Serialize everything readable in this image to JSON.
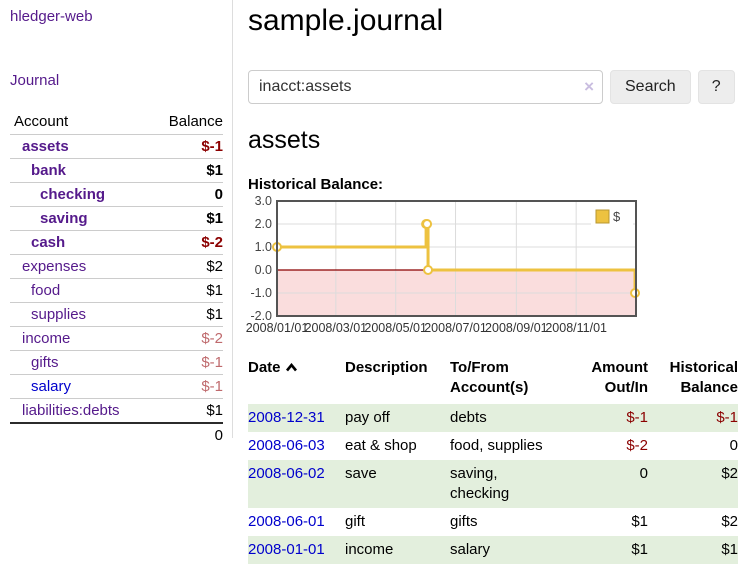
{
  "app": {
    "title": "hledger-web",
    "nav_journal": "Journal"
  },
  "sidebar": {
    "header": {
      "account": "Account",
      "balance": "Balance"
    },
    "accounts": [
      {
        "label": "assets",
        "level": 0,
        "bold": true,
        "balance": "$-1",
        "bclass": "neg",
        "lcolor": "purple"
      },
      {
        "label": "bank",
        "level": 1,
        "bold": true,
        "balance": "$1",
        "bclass": "pos",
        "lcolor": "purple"
      },
      {
        "label": "checking",
        "level": 2,
        "bold": true,
        "balance": "0",
        "bclass": "pos",
        "lcolor": "purple"
      },
      {
        "label": "saving",
        "level": 2,
        "bold": true,
        "balance": "$1",
        "bclass": "pos",
        "lcolor": "purple"
      },
      {
        "label": "cash",
        "level": 1,
        "bold": true,
        "balance": "$-2",
        "bclass": "neg",
        "lcolor": "purple"
      },
      {
        "label": "expenses",
        "level": 0,
        "bold": false,
        "balance": "$2",
        "bclass": "pos",
        "lcolor": "purple"
      },
      {
        "label": "food",
        "level": 1,
        "bold": false,
        "balance": "$1",
        "bclass": "pos",
        "lcolor": "purple"
      },
      {
        "label": "supplies",
        "level": 1,
        "bold": false,
        "balance": "$1",
        "bclass": "pos",
        "lcolor": "purple"
      },
      {
        "label": "income",
        "level": 0,
        "bold": false,
        "balance": "$-2",
        "bclass": "negl",
        "lcolor": "purple"
      },
      {
        "label": "gifts",
        "level": 1,
        "bold": false,
        "balance": "$-1",
        "bclass": "negl",
        "lcolor": "purple"
      },
      {
        "label": "salary",
        "level": 1,
        "bold": false,
        "balance": "$-1",
        "bclass": "negl",
        "lcolor": "blue"
      },
      {
        "label": "liabilities:debts",
        "level": 0,
        "bold": false,
        "balance": "$1",
        "bclass": "pos",
        "lcolor": "purple"
      }
    ],
    "total": "0"
  },
  "main": {
    "title": "sample.journal",
    "search": {
      "value": "inacct:assets",
      "clear_icon": "×",
      "button_label": "Search",
      "help_label": "?"
    },
    "account_heading": "assets",
    "chart_label": "Historical Balance:"
  },
  "chart_data": {
    "type": "line",
    "title": "Historical Balance",
    "step": true,
    "series": [
      {
        "name": "$",
        "color": "#edc240",
        "points": [
          [
            "2008-01-01",
            1
          ],
          [
            "2008-06-01",
            2
          ],
          [
            "2008-06-02",
            2
          ],
          [
            "2008-06-03",
            0
          ],
          [
            "2008-12-31",
            -1
          ]
        ]
      }
    ],
    "x_range": [
      "2008-01-01",
      "2009-01-01"
    ],
    "x_ticks": [
      {
        "date": "2008-01-01",
        "label": "2008/01/01"
      },
      {
        "date": "2008-03-01",
        "label": "2008/03/01"
      },
      {
        "date": "2008-05-01",
        "label": "2008/05/01"
      },
      {
        "date": "2008-07-01",
        "label": "2008/07/01"
      },
      {
        "date": "2008-09-01",
        "label": "2008/09/01"
      },
      {
        "date": "2008-11-01",
        "label": "2008/11/01"
      }
    ],
    "y_ticks": [
      3.0,
      2.0,
      1.0,
      0.0,
      -1.0,
      -2.0
    ],
    "ylim": [
      -2,
      3
    ],
    "grid": true,
    "legend": {
      "label": "$",
      "position": "top-right"
    },
    "negative_region_color": "#fadddd",
    "zero_line_color": "#8b0000",
    "border_color": "#545454"
  },
  "table": {
    "headers": [
      "Date",
      "Description",
      "To/From Account(s)",
      "Amount Out/In",
      "Historical Balance"
    ],
    "sort": "date-ascending",
    "rows": [
      {
        "date": "2008-12-31",
        "description": "pay off",
        "accounts": "debts",
        "amount": "$-1",
        "amount_neg": true,
        "balance": "$-1",
        "balance_neg": true,
        "shaded": true
      },
      {
        "date": "2008-06-03",
        "description": "eat & shop",
        "accounts": "food, supplies",
        "amount": "$-2",
        "amount_neg": true,
        "balance": "0",
        "balance_neg": false,
        "shaded": false
      },
      {
        "date": "2008-06-02",
        "description": "save",
        "accounts": "saving,\nchecking",
        "amount": "0",
        "amount_neg": false,
        "balance": "$2",
        "balance_neg": false,
        "shaded": true
      },
      {
        "date": "2008-06-01",
        "description": "gift",
        "accounts": "gifts",
        "amount": "$1",
        "amount_neg": false,
        "balance": "$2",
        "balance_neg": false,
        "shaded": false
      },
      {
        "date": "2008-01-01",
        "description": "income",
        "accounts": "salary",
        "amount": "$1",
        "amount_neg": false,
        "balance": "$1",
        "balance_neg": false,
        "shaded": true
      }
    ]
  }
}
